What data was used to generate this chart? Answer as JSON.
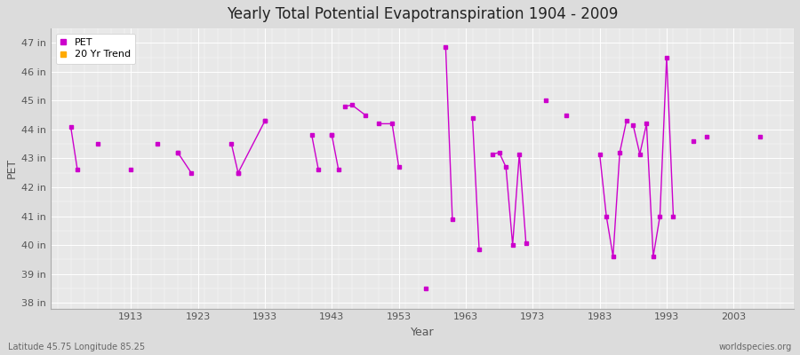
{
  "title": "Yearly Total Potential Evapotranspiration 1904 - 2009",
  "xlabel": "Year",
  "ylabel": "PET",
  "subtitle_left": "Latitude 45.75 Longitude 85.25",
  "subtitle_right": "worldspecies.org",
  "ylim": [
    37.8,
    47.5
  ],
  "xlim": [
    1901,
    2012
  ],
  "yticks": [
    38,
    39,
    40,
    41,
    42,
    43,
    44,
    45,
    46,
    47
  ],
  "ytick_labels": [
    "38 in",
    "39 in",
    "40 in",
    "41 in",
    "42 in",
    "43 in",
    "44 in",
    "45 in",
    "46 in",
    "47 in"
  ],
  "xtick_positions": [
    1913,
    1923,
    1933,
    1943,
    1953,
    1963,
    1973,
    1983,
    1993,
    2003
  ],
  "bg_color": "#dcdcdc",
  "plot_bg_color": "#e8e8e8",
  "line_color": "#cc00cc",
  "trend_color": "#ffaa00",
  "isolated_points": [
    [
      1908,
      43.5
    ],
    [
      1913,
      42.6
    ],
    [
      1917,
      43.5
    ],
    [
      1920,
      43.2
    ],
    [
      1933,
      44.3
    ],
    [
      1943,
      43.8
    ],
    [
      1957,
      38.5
    ],
    [
      1975,
      45.0
    ],
    [
      1978,
      44.5
    ],
    [
      1997,
      43.6
    ],
    [
      1999,
      43.75
    ],
    [
      2007,
      43.75
    ]
  ],
  "connected_segments": [
    [
      [
        1904,
        44.1
      ],
      [
        1905,
        42.6
      ]
    ],
    [
      [
        1920,
        43.2
      ],
      [
        1922,
        42.5
      ]
    ],
    [
      [
        1928,
        43.5
      ],
      [
        1929,
        42.5
      ]
    ],
    [
      [
        1929,
        42.5
      ],
      [
        1933,
        44.3
      ]
    ],
    [
      [
        1940,
        43.8
      ],
      [
        1941,
        42.6
      ]
    ],
    [
      [
        1943,
        43.8
      ],
      [
        1944,
        42.6
      ]
    ],
    [
      [
        1945,
        44.8
      ],
      [
        1946,
        44.85
      ],
      [
        1948,
        44.5
      ]
    ],
    [
      [
        1950,
        44.2
      ],
      [
        1952,
        44.2
      ],
      [
        1953,
        42.7
      ]
    ],
    [
      [
        1960,
        46.85
      ],
      [
        1961,
        40.9
      ]
    ],
    [
      [
        1964,
        44.4
      ],
      [
        1965,
        39.85
      ]
    ],
    [
      [
        1967,
        43.15
      ],
      [
        1968,
        43.2
      ],
      [
        1969,
        42.7
      ],
      [
        1970,
        40.0
      ],
      [
        1971,
        43.15
      ],
      [
        1972,
        40.05
      ]
    ],
    [
      [
        1983,
        43.15
      ],
      [
        1984,
        41.0
      ],
      [
        1985,
        39.6
      ],
      [
        1986,
        43.2
      ],
      [
        1987,
        44.3
      ]
    ],
    [
      [
        1988,
        44.15
      ],
      [
        1989,
        43.15
      ],
      [
        1990,
        44.2
      ],
      [
        1991,
        39.6
      ],
      [
        1992,
        41.0
      ],
      [
        1993,
        46.5
      ],
      [
        1994,
        41.0
      ]
    ]
  ]
}
